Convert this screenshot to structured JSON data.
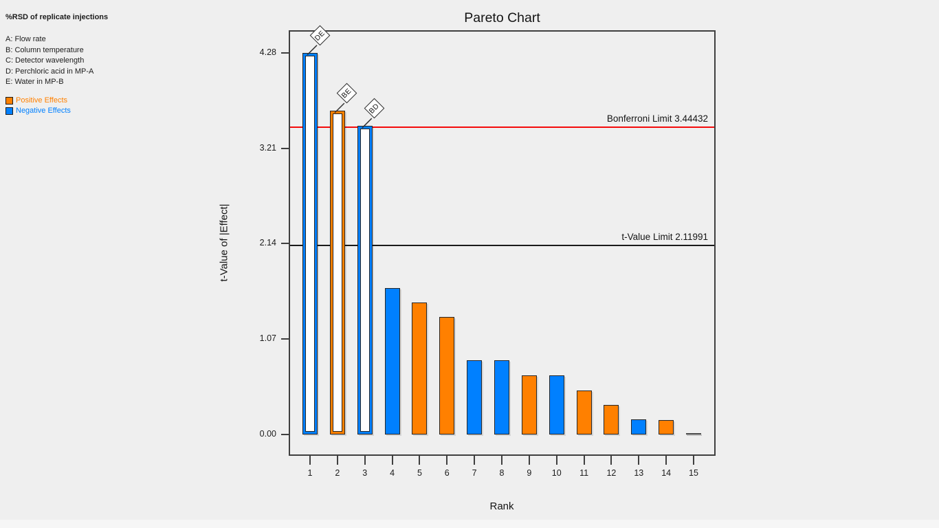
{
  "info_panel": {
    "title": "%RSD of replicate injections",
    "factors": [
      "A: Flow rate",
      "B: Column temperature",
      "C: Detector wavelength",
      "D: Perchloric acid in MP-A",
      "E: Water in MP-B"
    ],
    "legend": {
      "positive": {
        "label": "Positive Effects",
        "color": "#FF8000"
      },
      "negative": {
        "label": "Negative Effects",
        "color": "#0080FF"
      }
    }
  },
  "chart": {
    "title": "Pareto Chart",
    "xlabel": "Rank",
    "ylabel": "t-Value of |Effect|"
  },
  "chart_data": {
    "type": "bar",
    "title": "Pareto Chart",
    "xlabel": "Rank",
    "ylabel": "t-Value of |Effect|",
    "x": [
      1,
      2,
      3,
      4,
      5,
      6,
      7,
      8,
      9,
      10,
      11,
      12,
      13,
      14,
      15
    ],
    "values": [
      4.28,
      3.63,
      3.46,
      1.64,
      1.48,
      1.32,
      0.83,
      0.83,
      0.66,
      0.66,
      0.49,
      0.33,
      0.17,
      0.16,
      0.0
    ],
    "effect_sign": [
      "negative",
      "positive",
      "negative",
      "negative",
      "positive",
      "positive",
      "negative",
      "negative",
      "positive",
      "negative",
      "positive",
      "positive",
      "negative",
      "positive",
      "zero"
    ],
    "bar_style": [
      "outline",
      "outline",
      "outline",
      "solid",
      "solid",
      "solid",
      "solid",
      "solid",
      "solid",
      "solid",
      "solid",
      "solid",
      "solid",
      "solid",
      "dash"
    ],
    "flags": [
      {
        "rank": 1,
        "label": "DE"
      },
      {
        "rank": 2,
        "label": "BE"
      },
      {
        "rank": 3,
        "label": "BD"
      }
    ],
    "y_ticks": [
      "0.00",
      "1.07",
      "2.14",
      "3.21",
      "4.28"
    ],
    "ylim": [
      0,
      4.53
    ],
    "reference_lines": [
      {
        "name": "bonferroni-limit",
        "label": "Bonferroni Limit 3.44432",
        "value": 3.44432,
        "color": "#F40A0A"
      },
      {
        "name": "t-value-limit",
        "label": "t-Value Limit 2.11991",
        "value": 2.11991,
        "color": "#1a1a1a"
      }
    ],
    "colors": {
      "positive": "#FF8000",
      "negative": "#0080FF",
      "zero": "#4a4a4a"
    },
    "legend_position": "left",
    "grid": false
  }
}
